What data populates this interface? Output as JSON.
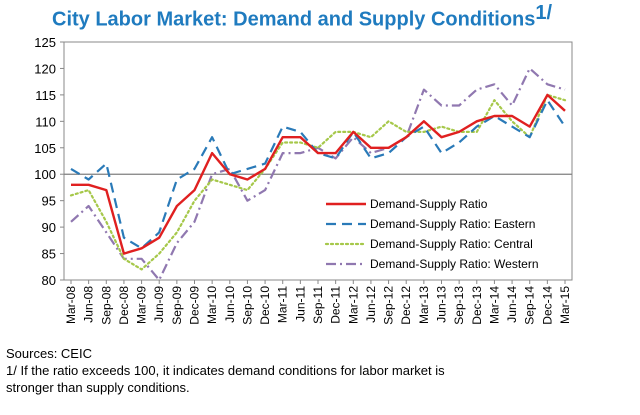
{
  "chart_data": {
    "type": "line",
    "title": "City Labor Market: Demand and Supply Conditions",
    "title_note": "1/",
    "xlabel": "",
    "ylabel": "",
    "ylim": [
      80,
      125
    ],
    "yticks": [
      80,
      85,
      90,
      95,
      100,
      105,
      110,
      115,
      120,
      125
    ],
    "reference_line": 100,
    "legend_position": "lower-right inside plot",
    "categories": [
      "Mar-08",
      "Jun-08",
      "Sep-08",
      "Dec-08",
      "Mar-09",
      "Jun-09",
      "Sep-09",
      "Dec-09",
      "Mar-10",
      "Jun-10",
      "Sep-10",
      "Dec-10",
      "Mar-11",
      "Jun-11",
      "Sep-11",
      "Dec-11",
      "Mar-12",
      "Jun-12",
      "Sep-12",
      "Dec-12",
      "Mar-13",
      "Jun-13",
      "Sep-13",
      "Dec-13",
      "Mar-14",
      "Jun-14",
      "Sep-14",
      "Dec-14",
      "Mar-15"
    ],
    "series": [
      {
        "name": "Demand-Supply Ratio",
        "color": "#e02020",
        "dash": "solid",
        "values": [
          98,
          98,
          97,
          85,
          86,
          88,
          94,
          97,
          104,
          100,
          99,
          101,
          107,
          107,
          104,
          104,
          108,
          105,
          105,
          107,
          110,
          107,
          108,
          110,
          111,
          111,
          109,
          115,
          112
        ]
      },
      {
        "name": "Demand-Supply Ratio: Eastern",
        "color": "#2a7ab8",
        "dash": "long",
        "values": [
          101,
          99,
          102,
          88,
          86,
          89,
          99,
          101,
          107,
          100,
          101,
          102,
          109,
          108,
          104,
          103,
          108,
          103,
          104,
          107,
          109,
          104,
          106,
          109,
          111,
          109,
          107,
          114,
          109
        ]
      },
      {
        "name": "Demand-Supply Ratio: Central",
        "color": "#a6c84a",
        "dash": "dot",
        "values": [
          96,
          97,
          91,
          84,
          82,
          85,
          89,
          95,
          99,
          98,
          97,
          101,
          106,
          106,
          105,
          108,
          108,
          107,
          110,
          108,
          108,
          109,
          108,
          108,
          114,
          110,
          107,
          115,
          114
        ]
      },
      {
        "name": "Demand-Supply Ratio: Western",
        "color": "#9078b0",
        "dash": "dashdot",
        "values": [
          91,
          94,
          89,
          84,
          84,
          80,
          87,
          91,
          100,
          101,
          95,
          97,
          104,
          104,
          105,
          103,
          107,
          104,
          105,
          107,
          116,
          113,
          113,
          116,
          117,
          113,
          120,
          117,
          116
        ]
      }
    ]
  },
  "footer": {
    "source": "Sources: CEIC",
    "note_line1": "1/ If the ratio exceeds 100, it indicates demand conditions for labor market is",
    "note_line2": "stronger than supply conditions."
  }
}
